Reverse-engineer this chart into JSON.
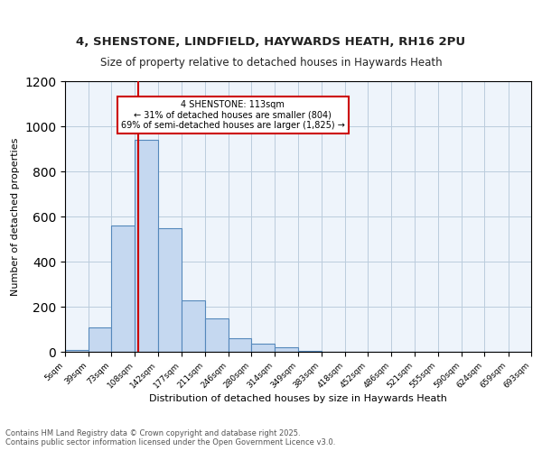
{
  "title_line1": "4, SHENSTONE, LINDFIELD, HAYWARDS HEATH, RH16 2PU",
  "title_line2": "Size of property relative to detached houses in Haywards Heath",
  "xlabel": "Distribution of detached houses by size in Haywards Heath",
  "ylabel": "Number of detached properties",
  "bin_edges": [
    5,
    39,
    73,
    108,
    142,
    177,
    211,
    246,
    280,
    314,
    349,
    383,
    418,
    452,
    486,
    521,
    555,
    590,
    624,
    659,
    693
  ],
  "bin_counts": [
    10,
    110,
    560,
    940,
    550,
    230,
    150,
    60,
    35,
    20,
    5,
    2,
    1,
    0,
    0,
    0,
    0,
    0,
    0,
    0
  ],
  "bar_color": "#c5d8f0",
  "bar_edge_color": "#5588bb",
  "red_line_x": 113,
  "annotation_text": "4 SHENSTONE: 113sqm\n← 31% of detached houses are smaller (804)\n69% of semi-detached houses are larger (1,825) →",
  "annotation_box_color": "#ffffff",
  "annotation_box_edge_color": "#cc0000",
  "annotation_text_color": "#000000",
  "red_line_color": "#cc0000",
  "ylim": [
    0,
    1200
  ],
  "yticks": [
    0,
    200,
    400,
    600,
    800,
    1000,
    1200
  ],
  "grid_color": "#bbccdd",
  "background_color": "#eef4fb",
  "footer_text": "Contains HM Land Registry data © Crown copyright and database right 2025.\nContains public sector information licensed under the Open Government Licence v3.0.",
  "tick_labels": [
    "5sqm",
    "39sqm",
    "73sqm",
    "108sqm",
    "142sqm",
    "177sqm",
    "211sqm",
    "246sqm",
    "280sqm",
    "314sqm",
    "349sqm",
    "383sqm",
    "418sqm",
    "452sqm",
    "486sqm",
    "521sqm",
    "555sqm",
    "590sqm",
    "624sqm",
    "659sqm",
    "693sqm"
  ]
}
